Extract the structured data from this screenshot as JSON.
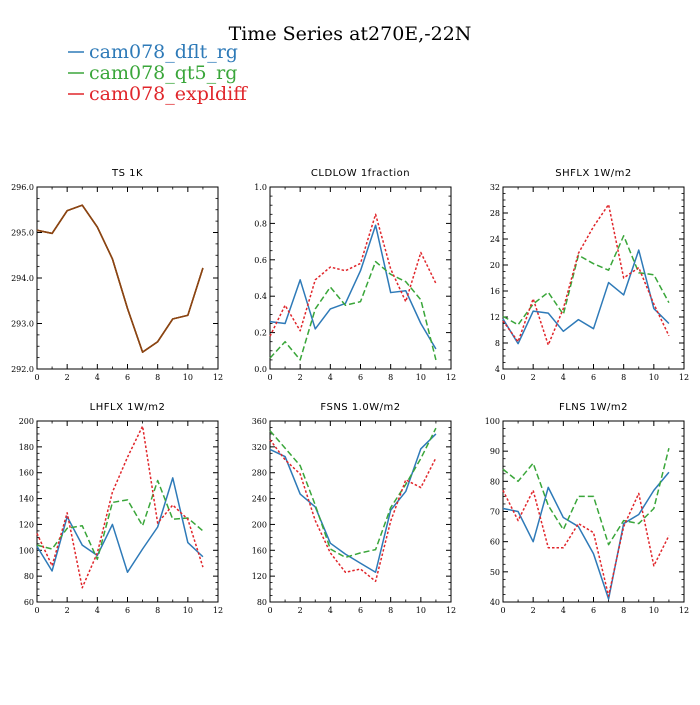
{
  "figure": {
    "title": "Time Series at270E,-22N",
    "legend": [
      {
        "label": "cam078_dflt_rg",
        "color": "#2e7ab8",
        "dash": "solid"
      },
      {
        "label": "cam078_qt5_rg",
        "color": "#3aa63a",
        "dash": "dashed"
      },
      {
        "label": "cam078_expldiff",
        "color": "#e0262b",
        "dash": "dotted"
      }
    ]
  },
  "chart_data": [
    {
      "type": "line",
      "title": "TS   1K",
      "x": [
        0,
        1,
        2,
        3,
        4,
        5,
        6,
        7,
        8,
        9,
        10,
        11
      ],
      "xlim": [
        0,
        12
      ],
      "xticks": [
        0,
        2,
        4,
        6,
        8,
        10,
        12
      ],
      "ylim": [
        292.0,
        296.0
      ],
      "yticks": [
        292.0,
        293.0,
        294.0,
        295.0,
        296.0
      ],
      "ytick_labels": [
        "292.0",
        "293.0",
        "294.0",
        "295.0",
        "296.0"
      ],
      "series": [
        {
          "name": "cam078_dflt_rg",
          "values": [
            295.05,
            294.98,
            295.48,
            295.6,
            295.12,
            294.42,
            293.33,
            292.37,
            292.6,
            293.1,
            293.18,
            294.22
          ]
        },
        {
          "name": "cam078_qt5_rg",
          "values": [
            295.05,
            294.98,
            295.48,
            295.6,
            295.12,
            294.42,
            293.33,
            292.37,
            292.6,
            293.1,
            293.18,
            294.22
          ]
        },
        {
          "name": "cam078_expldiff",
          "values": [
            295.05,
            294.98,
            295.48,
            295.6,
            295.12,
            294.42,
            293.33,
            292.37,
            292.6,
            293.1,
            293.18,
            294.22
          ]
        }
      ],
      "overlay_color": "#8b4513"
    },
    {
      "type": "line",
      "title": "CLDLOW   1fraction",
      "x": [
        0,
        1,
        2,
        3,
        4,
        5,
        6,
        7,
        8,
        9,
        10,
        11
      ],
      "xlim": [
        0,
        12
      ],
      "xticks": [
        0,
        2,
        4,
        6,
        8,
        10,
        12
      ],
      "ylim": [
        0.0,
        1.0
      ],
      "yticks": [
        0.0,
        0.2,
        0.4,
        0.6,
        0.8,
        1.0
      ],
      "ytick_labels": [
        "0.0",
        "0.2",
        "0.4",
        "0.6",
        "0.8",
        "1.0"
      ],
      "series": [
        {
          "name": "cam078_dflt_rg",
          "values": [
            0.26,
            0.25,
            0.49,
            0.22,
            0.33,
            0.36,
            0.54,
            0.79,
            0.42,
            0.43,
            0.25,
            0.11
          ]
        },
        {
          "name": "cam078_qt5_rg",
          "values": [
            0.06,
            0.15,
            0.05,
            0.33,
            0.45,
            0.35,
            0.37,
            0.59,
            0.52,
            0.48,
            0.38,
            0.05
          ]
        },
        {
          "name": "cam078_expldiff",
          "values": [
            0.18,
            0.35,
            0.21,
            0.49,
            0.56,
            0.54,
            0.58,
            0.85,
            0.55,
            0.37,
            0.64,
            0.47
          ]
        }
      ]
    },
    {
      "type": "line",
      "title": "SHFLX   1W/m2",
      "x": [
        0,
        1,
        2,
        3,
        4,
        5,
        6,
        7,
        8,
        9,
        10,
        11
      ],
      "xlim": [
        0,
        12
      ],
      "xticks": [
        0,
        2,
        4,
        6,
        8,
        10,
        12
      ],
      "ylim": [
        4,
        32
      ],
      "yticks": [
        4,
        8,
        12,
        16,
        20,
        24,
        28,
        32
      ],
      "ytick_labels": [
        "4",
        "8",
        "12",
        "16",
        "20",
        "24",
        "28",
        "32"
      ],
      "series": [
        {
          "name": "cam078_dflt_rg",
          "values": [
            11.7,
            7.9,
            12.9,
            12.6,
            9.8,
            11.6,
            10.2,
            17.3,
            15.4,
            22.3,
            13.3,
            11.0
          ]
        },
        {
          "name": "cam078_qt5_rg",
          "values": [
            12.1,
            10.8,
            14.0,
            15.8,
            12.4,
            21.5,
            20.2,
            19.2,
            24.5,
            18.8,
            18.5,
            14.2
          ]
        },
        {
          "name": "cam078_expldiff",
          "values": [
            11.4,
            8.2,
            14.8,
            7.7,
            13.3,
            21.8,
            25.9,
            29.3,
            18.0,
            19.6,
            14.0,
            9.1
          ]
        }
      ]
    },
    {
      "type": "line",
      "title": "LHFLX   1W/m2",
      "x": [
        0,
        1,
        2,
        3,
        4,
        5,
        6,
        7,
        8,
        9,
        10,
        11
      ],
      "xlim": [
        0,
        12
      ],
      "xticks": [
        0,
        2,
        4,
        6,
        8,
        10,
        12
      ],
      "ylim": [
        60,
        200
      ],
      "yticks": [
        60,
        80,
        100,
        120,
        140,
        160,
        180,
        200
      ],
      "ytick_labels": [
        "60",
        "80",
        "100",
        "120",
        "140",
        "160",
        "180",
        "200"
      ],
      "series": [
        {
          "name": "cam078_dflt_rg",
          "values": [
            103,
            84,
            126,
            104,
            96,
            120,
            83,
            101,
            118,
            156,
            106,
            95
          ]
        },
        {
          "name": "cam078_qt5_rg",
          "values": [
            104,
            101,
            117,
            119,
            93,
            137,
            139,
            119,
            154,
            124,
            125,
            115
          ]
        },
        {
          "name": "cam078_expldiff",
          "values": [
            113,
            88,
            129,
            71,
            98,
            145,
            172,
            196,
            121,
            135,
            124,
            87
          ]
        }
      ]
    },
    {
      "type": "line",
      "title": "FSNS   1.0W/m2",
      "x": [
        0,
        1,
        2,
        3,
        4,
        5,
        6,
        7,
        8,
        9,
        10,
        11
      ],
      "xlim": [
        0,
        12
      ],
      "xticks": [
        0,
        2,
        4,
        6,
        8,
        10,
        12
      ],
      "ylim": [
        80,
        360
      ],
      "yticks": [
        80,
        120,
        160,
        200,
        240,
        280,
        320,
        360
      ],
      "ytick_labels": [
        "80",
        "120",
        "160",
        "200",
        "240",
        "280",
        "320",
        "360"
      ],
      "series": [
        {
          "name": "cam078_dflt_rg",
          "values": [
            316,
            305,
            247,
            227,
            171,
            154,
            140,
            126,
            222,
            251,
            317,
            340
          ]
        },
        {
          "name": "cam078_qt5_rg",
          "values": [
            345,
            318,
            291,
            230,
            162,
            149,
            156,
            161,
            226,
            262,
            302,
            349
          ]
        },
        {
          "name": "cam078_expldiff",
          "values": [
            331,
            300,
            278,
            206,
            156,
            126,
            131,
            112,
            205,
            269,
            257,
            303
          ]
        }
      ]
    },
    {
      "type": "line",
      "title": "FLNS   1W/m2",
      "x": [
        0,
        1,
        2,
        3,
        4,
        5,
        6,
        7,
        8,
        9,
        10,
        11
      ],
      "xlim": [
        0,
        12
      ],
      "xticks": [
        0,
        2,
        4,
        6,
        8,
        10,
        12
      ],
      "ylim": [
        40,
        100
      ],
      "yticks": [
        40,
        50,
        60,
        70,
        80,
        90,
        100
      ],
      "ytick_labels": [
        "40",
        "50",
        "60",
        "70",
        "80",
        "90",
        "100"
      ],
      "series": [
        {
          "name": "cam078_dflt_rg",
          "values": [
            71,
            70,
            60,
            78,
            68,
            65,
            56,
            41,
            66,
            69,
            77,
            83
          ]
        },
        {
          "name": "cam078_qt5_rg",
          "values": [
            84,
            80,
            86,
            72,
            64,
            75,
            75,
            59,
            67,
            66,
            71,
            91
          ]
        },
        {
          "name": "cam078_expldiff",
          "values": [
            77,
            67,
            77,
            58,
            58,
            66,
            63,
            42,
            65,
            76,
            52,
            62
          ]
        }
      ]
    }
  ]
}
